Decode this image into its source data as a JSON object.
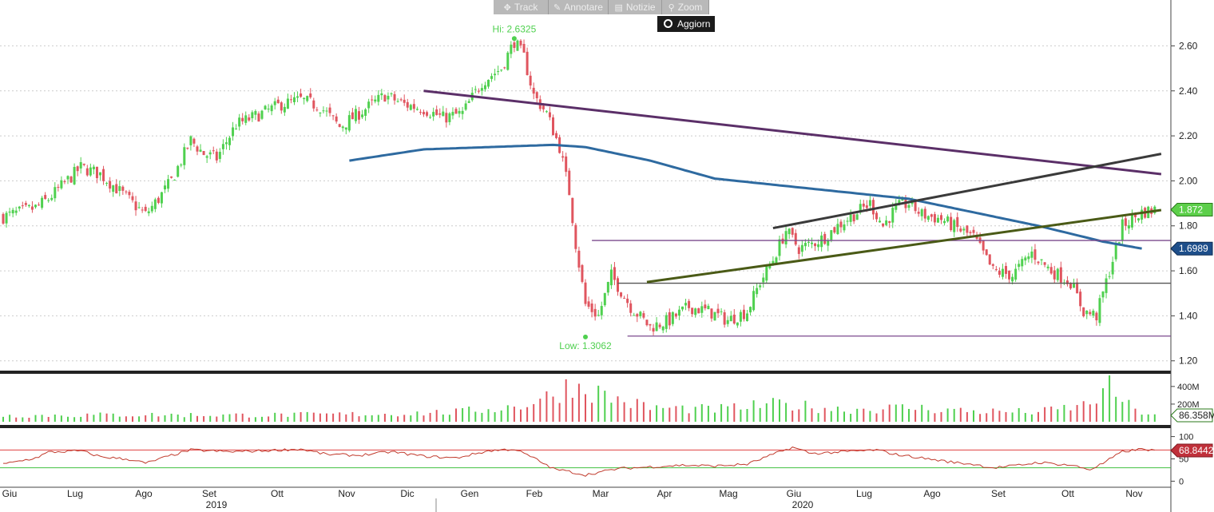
{
  "toolbar": {
    "track_label": "Track",
    "annotate_label": "Annotare",
    "news_label": "Notizie",
    "zoom_label": "Zoom",
    "refresh_label": "Aggiorn"
  },
  "colors": {
    "up": "#4fd04f",
    "down": "#e0555f",
    "ma": "#2e6aa0",
    "purple_trend": "#5b2f68",
    "dark_trend": "#3a3a3a",
    "olive_trend": "#4a5a16",
    "hline_purple": "#7b4a8e",
    "hline_gray": "#555555",
    "rsi": "#c0392b",
    "grid": "#cccccc"
  },
  "chart_data": [
    {
      "type": "candlestick",
      "panel": "price",
      "y_ticks": [
        "2.60",
        "2.40",
        "2.20",
        "2.00",
        "1.80",
        "1.60",
        "1.40",
        "1.20"
      ],
      "ylim": [
        1.16,
        2.74
      ],
      "hi_label": "Hi: 2.6325",
      "low_label": "Low: 1.3062",
      "last_price_label": "1.872",
      "ma_value_label": "1.6989",
      "months": [
        "Giu",
        "Lug",
        "Ago",
        "Set",
        "Ott",
        "Nov",
        "Dic",
        "Gen",
        "Feb",
        "Mar",
        "Apr",
        "Mag",
        "Giu",
        "Lug",
        "Ago",
        "Set",
        "Ott",
        "Nov"
      ],
      "close_path": [
        [
          0,
          1.84
        ],
        [
          10,
          1.88
        ],
        [
          14,
          1.92
        ],
        [
          24,
          2.06
        ],
        [
          30,
          2.03
        ],
        [
          34,
          1.98
        ],
        [
          40,
          1.9
        ],
        [
          44,
          1.85
        ],
        [
          48,
          1.92
        ],
        [
          52,
          2.0
        ],
        [
          58,
          2.18
        ],
        [
          62,
          2.12
        ],
        [
          66,
          2.1
        ],
        [
          72,
          2.25
        ],
        [
          80,
          2.3
        ],
        [
          86,
          2.34
        ],
        [
          92,
          2.36
        ],
        [
          98,
          2.33
        ],
        [
          104,
          2.24
        ],
        [
          110,
          2.3
        ],
        [
          118,
          2.38
        ],
        [
          124,
          2.34
        ],
        [
          130,
          2.32
        ],
        [
          136,
          2.28
        ],
        [
          142,
          2.3
        ],
        [
          148,
          2.44
        ],
        [
          154,
          2.5
        ],
        [
          158,
          2.62
        ],
        [
          161,
          2.55
        ],
        [
          164,
          2.38
        ],
        [
          168,
          2.3
        ],
        [
          172,
          2.15
        ],
        [
          175,
          1.95
        ],
        [
          177,
          1.72
        ],
        [
          180,
          1.45
        ],
        [
          184,
          1.4
        ],
        [
          188,
          1.58
        ],
        [
          194,
          1.44
        ],
        [
          200,
          1.35
        ],
        [
          206,
          1.38
        ],
        [
          212,
          1.44
        ],
        [
          218,
          1.42
        ],
        [
          224,
          1.38
        ],
        [
          230,
          1.42
        ],
        [
          234,
          1.55
        ],
        [
          238,
          1.65
        ],
        [
          242,
          1.78
        ],
        [
          246,
          1.7
        ],
        [
          250,
          1.72
        ],
        [
          254,
          1.75
        ],
        [
          258,
          1.8
        ],
        [
          264,
          1.86
        ],
        [
          268,
          1.9
        ],
        [
          272,
          1.8
        ],
        [
          276,
          1.88
        ],
        [
          280,
          1.9
        ],
        [
          284,
          1.85
        ],
        [
          290,
          1.83
        ],
        [
          296,
          1.78
        ],
        [
          300,
          1.75
        ],
        [
          306,
          1.6
        ],
        [
          312,
          1.58
        ],
        [
          318,
          1.68
        ],
        [
          324,
          1.6
        ],
        [
          330,
          1.55
        ],
        [
          334,
          1.42
        ],
        [
          338,
          1.4
        ],
        [
          342,
          1.6
        ],
        [
          346,
          1.8
        ],
        [
          352,
          1.86
        ],
        [
          356,
          1.872
        ]
      ],
      "moving_average_path": [
        [
          107,
          2.09
        ],
        [
          130,
          2.14
        ],
        [
          150,
          2.15
        ],
        [
          170,
          2.16
        ],
        [
          180,
          2.15
        ],
        [
          200,
          2.09
        ],
        [
          220,
          2.01
        ],
        [
          240,
          1.98
        ],
        [
          260,
          1.95
        ],
        [
          280,
          1.92
        ],
        [
          300,
          1.86
        ],
        [
          320,
          1.8
        ],
        [
          340,
          1.73
        ],
        [
          352,
          1.6989
        ]
      ],
      "trendlines": [
        {
          "name": "purple",
          "points": [
            [
              130,
              2.4
            ],
            [
              358,
              2.03
            ]
          ]
        },
        {
          "name": "dark",
          "points": [
            [
              238,
              1.79
            ],
            [
              358,
              2.12
            ]
          ]
        },
        {
          "name": "olive",
          "points": [
            [
              199,
              1.55
            ],
            [
              358,
              1.87
            ]
          ]
        }
      ],
      "horizontal_lines": [
        {
          "name": "purple-upper",
          "value": 1.735,
          "from": 182
        },
        {
          "name": "gray",
          "value": 1.545,
          "from": 190
        },
        {
          "name": "purple-low",
          "value": 1.31,
          "from": 193
        }
      ]
    },
    {
      "type": "bar",
      "panel": "volume",
      "y_ticks": [
        "400M",
        "200M"
      ],
      "ylim": [
        0,
        480
      ],
      "last_label": "86.358M",
      "volume_path": [
        [
          0,
          70
        ],
        [
          40,
          80
        ],
        [
          80,
          75
        ],
        [
          120,
          90
        ],
        [
          140,
          110
        ],
        [
          160,
          180
        ],
        [
          170,
          300
        ],
        [
          175,
          420
        ],
        [
          180,
          380
        ],
        [
          190,
          250
        ],
        [
          200,
          160
        ],
        [
          220,
          140
        ],
        [
          240,
          200
        ],
        [
          260,
          140
        ],
        [
          280,
          160
        ],
        [
          300,
          120
        ],
        [
          320,
          110
        ],
        [
          335,
          190
        ],
        [
          342,
          380
        ],
        [
          350,
          120
        ],
        [
          356,
          86
        ]
      ]
    },
    {
      "type": "line",
      "panel": "rsi",
      "y_ticks": [
        "100",
        "50",
        "0"
      ],
      "ylim": [
        -10,
        110
      ],
      "overbought": 70,
      "oversold": 30,
      "last_label": "68.8442",
      "rsi_path": [
        [
          0,
          38
        ],
        [
          10,
          52
        ],
        [
          14,
          65
        ],
        [
          24,
          68
        ],
        [
          30,
          55
        ],
        [
          40,
          48
        ],
        [
          44,
          40
        ],
        [
          52,
          58
        ],
        [
          58,
          70
        ],
        [
          70,
          66
        ],
        [
          80,
          68
        ],
        [
          92,
          72
        ],
        [
          100,
          60
        ],
        [
          110,
          58
        ],
        [
          120,
          66
        ],
        [
          130,
          56
        ],
        [
          140,
          52
        ],
        [
          150,
          68
        ],
        [
          158,
          72
        ],
        [
          164,
          52
        ],
        [
          170,
          28
        ],
        [
          176,
          20
        ],
        [
          180,
          14
        ],
        [
          190,
          28
        ],
        [
          200,
          32
        ],
        [
          210,
          36
        ],
        [
          220,
          34
        ],
        [
          230,
          38
        ],
        [
          238,
          60
        ],
        [
          244,
          76
        ],
        [
          250,
          62
        ],
        [
          260,
          66
        ],
        [
          270,
          70
        ],
        [
          276,
          60
        ],
        [
          284,
          52
        ],
        [
          294,
          42
        ],
        [
          300,
          38
        ],
        [
          306,
          30
        ],
        [
          312,
          34
        ],
        [
          320,
          42
        ],
        [
          330,
          36
        ],
        [
          336,
          26
        ],
        [
          340,
          40
        ],
        [
          346,
          66
        ],
        [
          352,
          72
        ],
        [
          356,
          68.8442
        ]
      ]
    }
  ],
  "x_axis": {
    "month_labels": [
      "Giu",
      "Lug",
      "Ago",
      "Set",
      "Ott",
      "Nov",
      "Dic",
      "Gen",
      "Feb",
      "Mar",
      "Apr",
      "Mag",
      "Giu",
      "Lug",
      "Ago",
      "Set",
      "Ott",
      "Nov"
    ],
    "year_labels": [
      "2019",
      "2020"
    ]
  }
}
